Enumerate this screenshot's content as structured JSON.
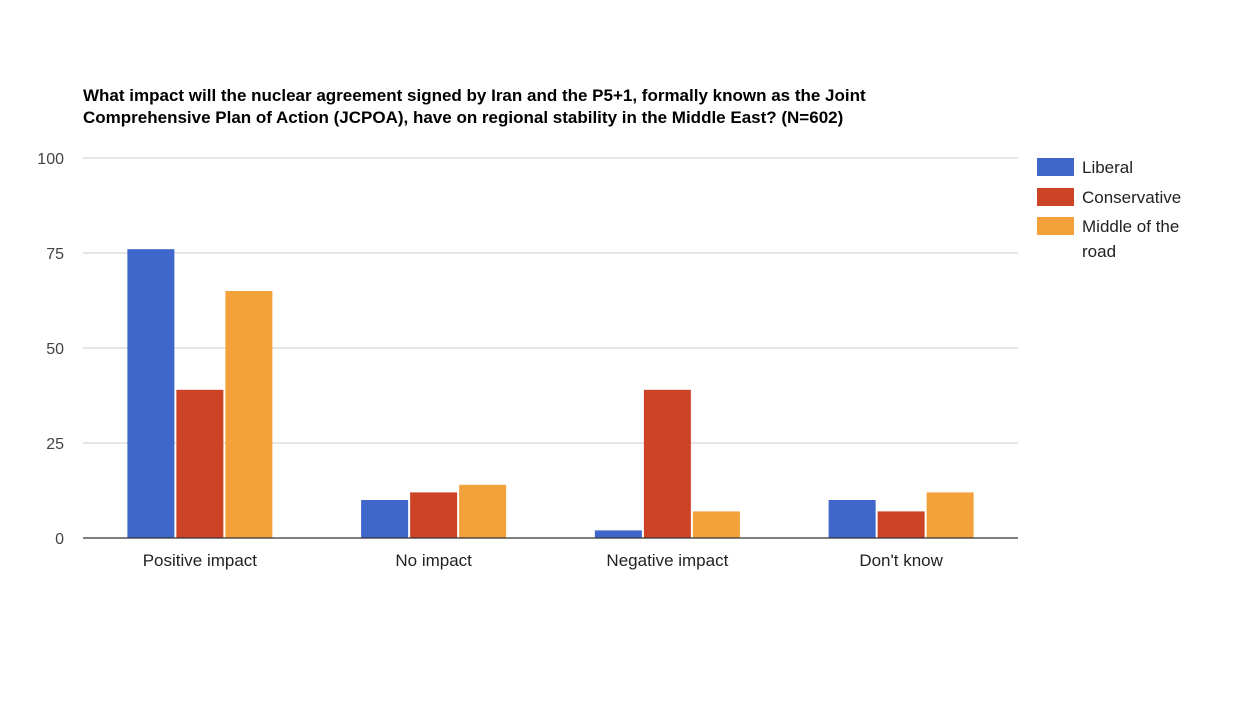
{
  "chart_data": {
    "type": "bar",
    "title_lines": [
      "What impact will the nuclear agreement signed by Iran and the P5+1, formally known as the Joint",
      "Comprehensive Plan of Action (JCPOA), have on regional stability in the Middle East? (N=602)"
    ],
    "categories": [
      "Positive impact",
      "No impact",
      "Negative impact",
      "Don't know"
    ],
    "series": [
      {
        "name": "Liberal",
        "color": "#3e66cb",
        "values": [
          76,
          10,
          2,
          10
        ]
      },
      {
        "name": "Conservative",
        "color": "#cd4326",
        "values": [
          39,
          12,
          39,
          7
        ]
      },
      {
        "name": "Middle of the road",
        "color": "#f2a13b",
        "values": [
          65,
          14,
          7,
          12
        ]
      }
    ],
    "legend_lines": [
      [
        "Liberal"
      ],
      [
        "Conservative"
      ],
      [
        "Middle of the",
        "road"
      ]
    ],
    "yticks": [
      0,
      25,
      50,
      75,
      100
    ],
    "ylim": [
      0,
      100
    ],
    "grid": true,
    "legend_position": "right"
  }
}
